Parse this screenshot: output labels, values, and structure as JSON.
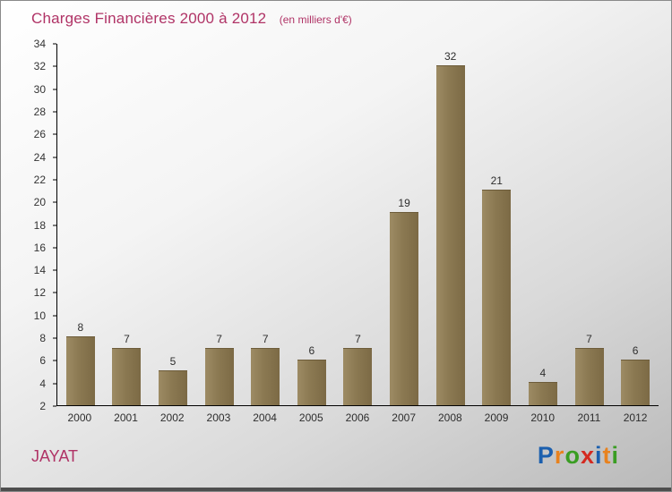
{
  "header": {
    "title": "Charges Financières 2000 à 2012",
    "subtitle": "(en milliers d'€)"
  },
  "footer": {
    "company": "JAYAT",
    "logo_text": "Proxiti",
    "logo_letters": [
      {
        "ch": "P",
        "color": "#1b5fae"
      },
      {
        "ch": "r",
        "color": "#e8821e"
      },
      {
        "ch": "o",
        "color": "#3a9d23"
      },
      {
        "ch": "x",
        "color": "#d42a20"
      },
      {
        "ch": "i",
        "color": "#1b5fae"
      },
      {
        "ch": "t",
        "color": "#e8821e"
      },
      {
        "ch": "i",
        "color": "#3a9d23"
      }
    ]
  },
  "colors": {
    "title": "#b03366",
    "company": "#b03366",
    "bar": "#8b7952",
    "axis": "#000000",
    "tick_text": "#333333"
  },
  "chart_data": {
    "type": "bar",
    "title": "Charges Financières 2000 à 2012",
    "subtitle": "(en milliers d'€)",
    "categories": [
      "2000",
      "2001",
      "2002",
      "2003",
      "2004",
      "2005",
      "2006",
      "2007",
      "2008",
      "2009",
      "2010",
      "2011",
      "2012"
    ],
    "values": [
      8,
      7,
      5,
      7,
      7,
      6,
      7,
      19,
      32,
      21,
      4,
      7,
      6
    ],
    "xlabel": "",
    "ylabel": "",
    "ylim": [
      2,
      34
    ],
    "ytick_step": 2,
    "grid": false,
    "legend": false,
    "bar_labels": true
  }
}
